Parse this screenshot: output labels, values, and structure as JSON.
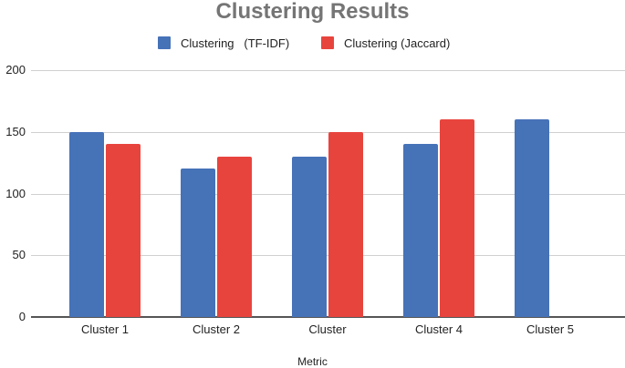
{
  "chart_data": {
    "type": "bar",
    "title": "Clustering Results",
    "xlabel": "Metric",
    "ylabel": "",
    "ylim": [
      0,
      200
    ],
    "yticks": [
      0,
      50,
      100,
      150,
      200
    ],
    "grid": true,
    "legend_position": "top",
    "categories": [
      "Cluster 1",
      "Cluster 2",
      "Cluster",
      "Cluster 4",
      "Cluster 5"
    ],
    "series": [
      {
        "name": "Clustering   (TF-IDF)",
        "color": "#4672b8",
        "values": [
          150,
          120,
          130,
          140,
          160
        ]
      },
      {
        "name": "Clustering (Jaccard)",
        "color": "#e8443e",
        "values": [
          140,
          130,
          150,
          160,
          null
        ]
      }
    ]
  }
}
